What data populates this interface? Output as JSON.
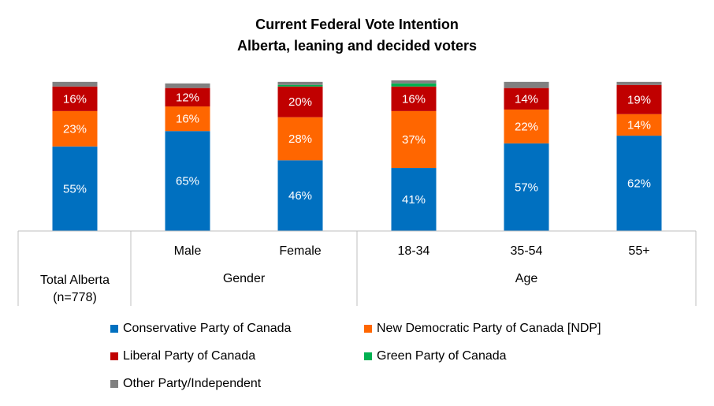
{
  "chart_data": {
    "type": "bar",
    "stacked": true,
    "title": "Current Federal Vote Intention",
    "subtitle": "Alberta, leaning and decided voters",
    "categories": [
      "Total Alberta\n(n=778)",
      "Male",
      "Female",
      "18-34",
      "35-54",
      "55+"
    ],
    "groups": [
      {
        "label": "",
        "categories": [
          0
        ]
      },
      {
        "label": "Gender",
        "categories": [
          1,
          2
        ]
      },
      {
        "label": "Age",
        "categories": [
          3,
          4,
          5
        ]
      }
    ],
    "series": [
      {
        "name": "Conservative Party of Canada",
        "color": "#0070C0",
        "values": [
          55,
          65,
          46,
          41,
          57,
          62
        ]
      },
      {
        "name": "New Democratic Party of Canada [NDP]",
        "color": "#FF6600",
        "values": [
          23,
          16,
          28,
          37,
          22,
          14
        ]
      },
      {
        "name": "Liberal Party of Canada",
        "color": "#C00000",
        "values": [
          16,
          12,
          20,
          16,
          14,
          19
        ]
      },
      {
        "name": "Green Party of Canada",
        "color": "#00B050",
        "values": [
          0,
          0,
          1,
          2,
          0,
          0
        ]
      },
      {
        "name": "Other Party/Independent",
        "color": "#808080",
        "values": [
          3,
          3,
          2,
          2,
          4,
          2
        ]
      }
    ],
    "value_labels": [
      [
        "55%",
        "65%",
        "46%",
        "41%",
        "57%",
        "62%"
      ],
      [
        "23%",
        "16%",
        "28%",
        "37%",
        "22%",
        "14%"
      ],
      [
        "16%",
        "12%",
        "20%",
        "16%",
        "14%",
        "19%"
      ],
      [
        "",
        "",
        "",
        "",
        "",
        ""
      ],
      [
        "",
        "",
        "",
        "",
        "",
        ""
      ]
    ],
    "ylim": [
      0,
      100
    ],
    "grid": false,
    "legend_position": "bottom"
  }
}
